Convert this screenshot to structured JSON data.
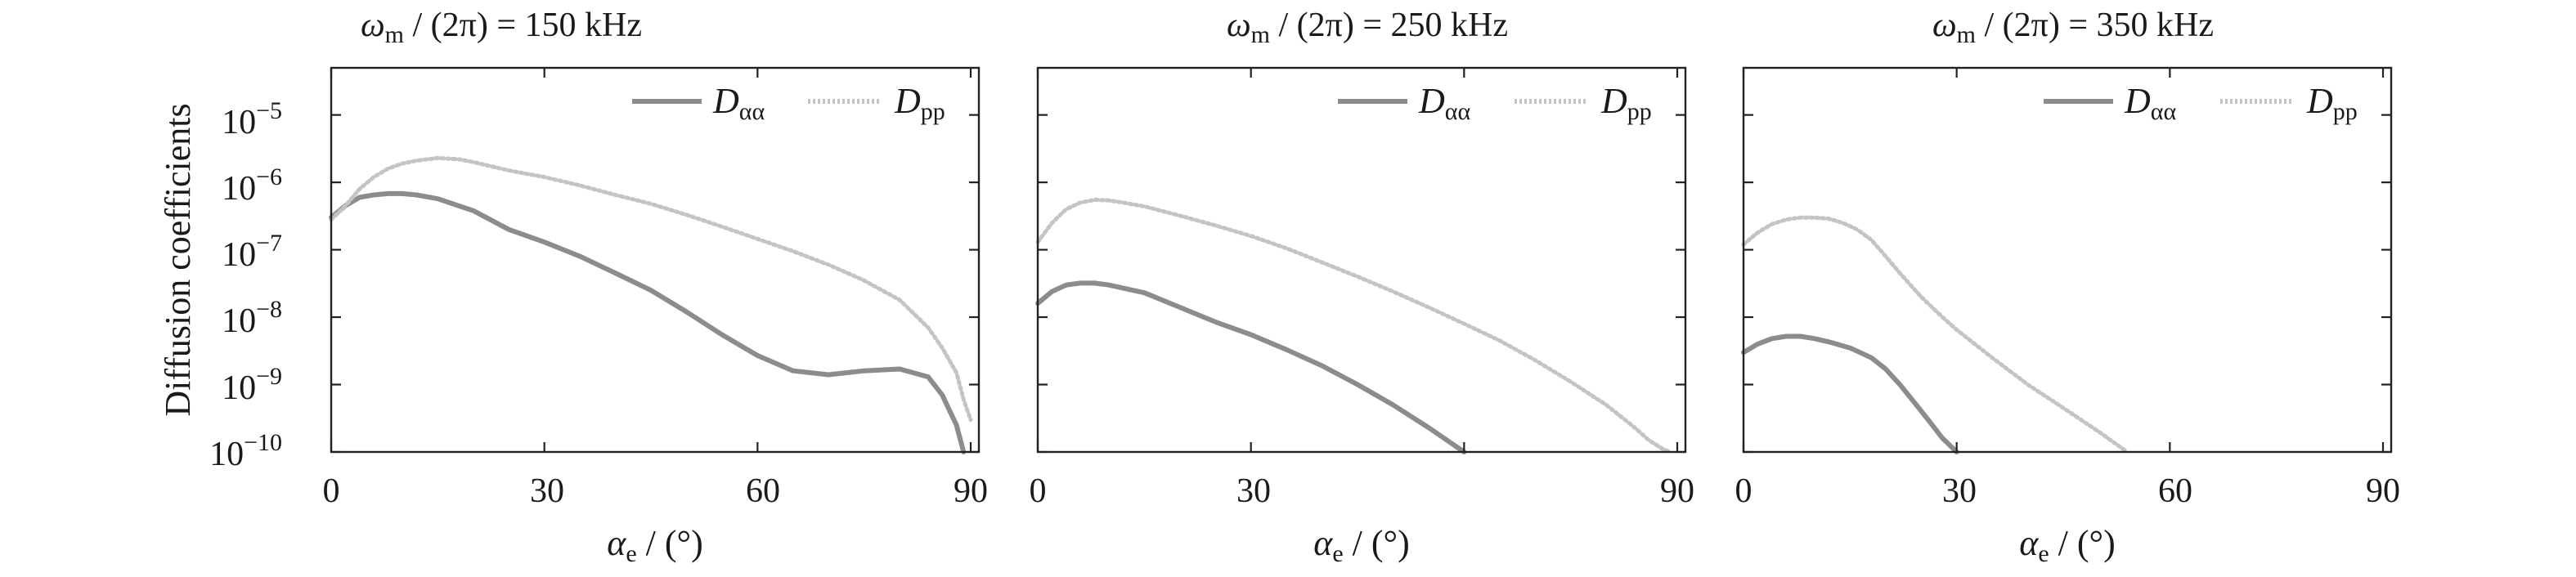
{
  "figure": {
    "ylabel": "Diffusion coefficients",
    "legend_series": [
      "D_αα",
      "D_pp"
    ]
  },
  "chart_data": [
    {
      "type": "line",
      "title": "ω_m / (2π) = 150 kHz",
      "title_parts": {
        "sym": "ω",
        "sub": "m",
        "rest": " / (2π) = 150 kHz"
      },
      "xlabel": "α_e / (°)",
      "ylabel": "Diffusion coefficients",
      "xlim": [
        0,
        90
      ],
      "ylim": [
        1e-10,
        5e-05
      ],
      "yscale": "log",
      "xticks": [
        0,
        30,
        60,
        90
      ],
      "yticks": [
        -10,
        -9,
        -8,
        -7,
        -6,
        -5
      ],
      "legend": "top-right",
      "series": [
        {
          "name": "D_αα",
          "color": "#8c8c8c",
          "style": "solid",
          "x": [
            0,
            2,
            4,
            6,
            8,
            10,
            12,
            15,
            20,
            25,
            30,
            35,
            40,
            45,
            50,
            55,
            60,
            65,
            70,
            75,
            80,
            84,
            86,
            88,
            89
          ],
          "y": [
            3e-07,
            4.5e-07,
            6e-07,
            6.5e-07,
            6.8e-07,
            6.8e-07,
            6.5e-07,
            5.7e-07,
            3.8e-07,
            2e-07,
            1.3e-07,
            8e-08,
            4.5e-08,
            2.5e-08,
            1.2e-08,
            5.5e-09,
            2.7e-09,
            1.6e-09,
            1.4e-09,
            1.6e-09,
            1.7e-09,
            1.3e-09,
            7e-10,
            2.5e-10,
            1e-10
          ]
        },
        {
          "name": "D_pp",
          "color": "#c4c4c4",
          "style": "dotted",
          "x": [
            0,
            2,
            4,
            6,
            8,
            10,
            12,
            15,
            18,
            20,
            25,
            30,
            35,
            40,
            45,
            50,
            55,
            60,
            65,
            70,
            75,
            80,
            84,
            86,
            88,
            89,
            90
          ],
          "y": [
            2.8e-07,
            4.5e-07,
            8e-07,
            1.2e-06,
            1.6e-06,
            1.9e-06,
            2.1e-06,
            2.3e-06,
            2.2e-06,
            2e-06,
            1.5e-06,
            1.2e-06,
            9e-07,
            6.5e-07,
            4.8e-07,
            3.3e-07,
            2.2e-07,
            1.45e-07,
            9.5e-08,
            6e-08,
            3.5e-08,
            1.8e-08,
            7e-09,
            3.5e-09,
            1.5e-09,
            6e-10,
            3e-10
          ]
        }
      ]
    },
    {
      "type": "line",
      "title": "ω_m / (2π) = 250 kHz",
      "title_parts": {
        "sym": "ω",
        "sub": "m",
        "rest": " / (2π) = 250 kHz"
      },
      "xlabel": "α_e / (°)",
      "ylabel": "",
      "xlim": [
        0,
        90
      ],
      "ylim": [
        1e-10,
        5e-05
      ],
      "yscale": "log",
      "xticks": [
        0,
        30,
        90
      ],
      "legend": "top-right",
      "series": [
        {
          "name": "D_αα",
          "color": "#8c8c8c",
          "style": "solid",
          "x": [
            0,
            2,
            4,
            6,
            8,
            10,
            15,
            20,
            25,
            30,
            35,
            40,
            45,
            50,
            55,
            60
          ],
          "y": [
            1.6e-08,
            2.4e-08,
            3e-08,
            3.2e-08,
            3.2e-08,
            3e-08,
            2.3e-08,
            1.4e-08,
            8.5e-09,
            5.5e-09,
            3.3e-09,
            1.9e-09,
            1e-09,
            5e-10,
            2.3e-10,
            1e-10
          ]
        },
        {
          "name": "D_pp",
          "color": "#c4c4c4",
          "style": "dotted",
          "x": [
            0,
            2,
            4,
            6,
            8,
            10,
            12,
            15,
            20,
            25,
            30,
            35,
            40,
            45,
            50,
            55,
            60,
            65,
            70,
            75,
            80,
            84,
            86,
            88,
            89
          ],
          "y": [
            1.3e-07,
            2.5e-07,
            4e-07,
            5e-07,
            5.5e-07,
            5.4e-07,
            5e-07,
            4.4e-07,
            3.2e-07,
            2.3e-07,
            1.6e-07,
            1.05e-07,
            6.5e-08,
            4e-08,
            2.4e-08,
            1.4e-08,
            8e-09,
            4.5e-09,
            2.3e-09,
            1.1e-09,
            5e-10,
            2.3e-10,
            1.5e-10,
            1.1e-10,
            1e-10
          ]
        }
      ]
    },
    {
      "type": "line",
      "title": "ω_m / (2π) = 350 kHz",
      "title_parts": {
        "sym": "ω",
        "sub": "m",
        "rest": " / (2π) = 350 kHz"
      },
      "xlabel": "α_e / (°)",
      "ylabel": "",
      "xlim": [
        0,
        90
      ],
      "ylim": [
        1e-10,
        5e-05
      ],
      "yscale": "log",
      "xticks": [
        0,
        30,
        60,
        90
      ],
      "legend": "top-right",
      "series": [
        {
          "name": "D_αα",
          "color": "#8c8c8c",
          "style": "solid",
          "x": [
            0,
            2,
            4,
            6,
            8,
            10,
            12,
            15,
            18,
            20,
            22,
            24,
            26,
            28,
            30
          ],
          "y": [
            3e-09,
            4e-09,
            4.8e-09,
            5.2e-09,
            5.2e-09,
            4.8e-09,
            4.3e-09,
            3.5e-09,
            2.5e-09,
            1.7e-09,
            1e-09,
            5.5e-10,
            3e-10,
            1.6e-10,
            1e-10
          ]
        },
        {
          "name": "D_pp",
          "color": "#c4c4c4",
          "style": "dotted",
          "x": [
            0,
            2,
            4,
            6,
            8,
            10,
            12,
            14,
            16,
            18,
            20,
            22,
            25,
            28,
            30,
            35,
            40,
            45,
            50,
            54
          ],
          "y": [
            1.2e-07,
            1.8e-07,
            2.4e-07,
            2.8e-07,
            3e-07,
            3e-07,
            2.9e-07,
            2.5e-07,
            2e-07,
            1.4e-07,
            8e-08,
            4.5e-08,
            2e-08,
            1e-08,
            6.5e-09,
            2.5e-09,
            1e-09,
            4.5e-10,
            2e-10,
            1e-10
          ]
        }
      ]
    }
  ]
}
